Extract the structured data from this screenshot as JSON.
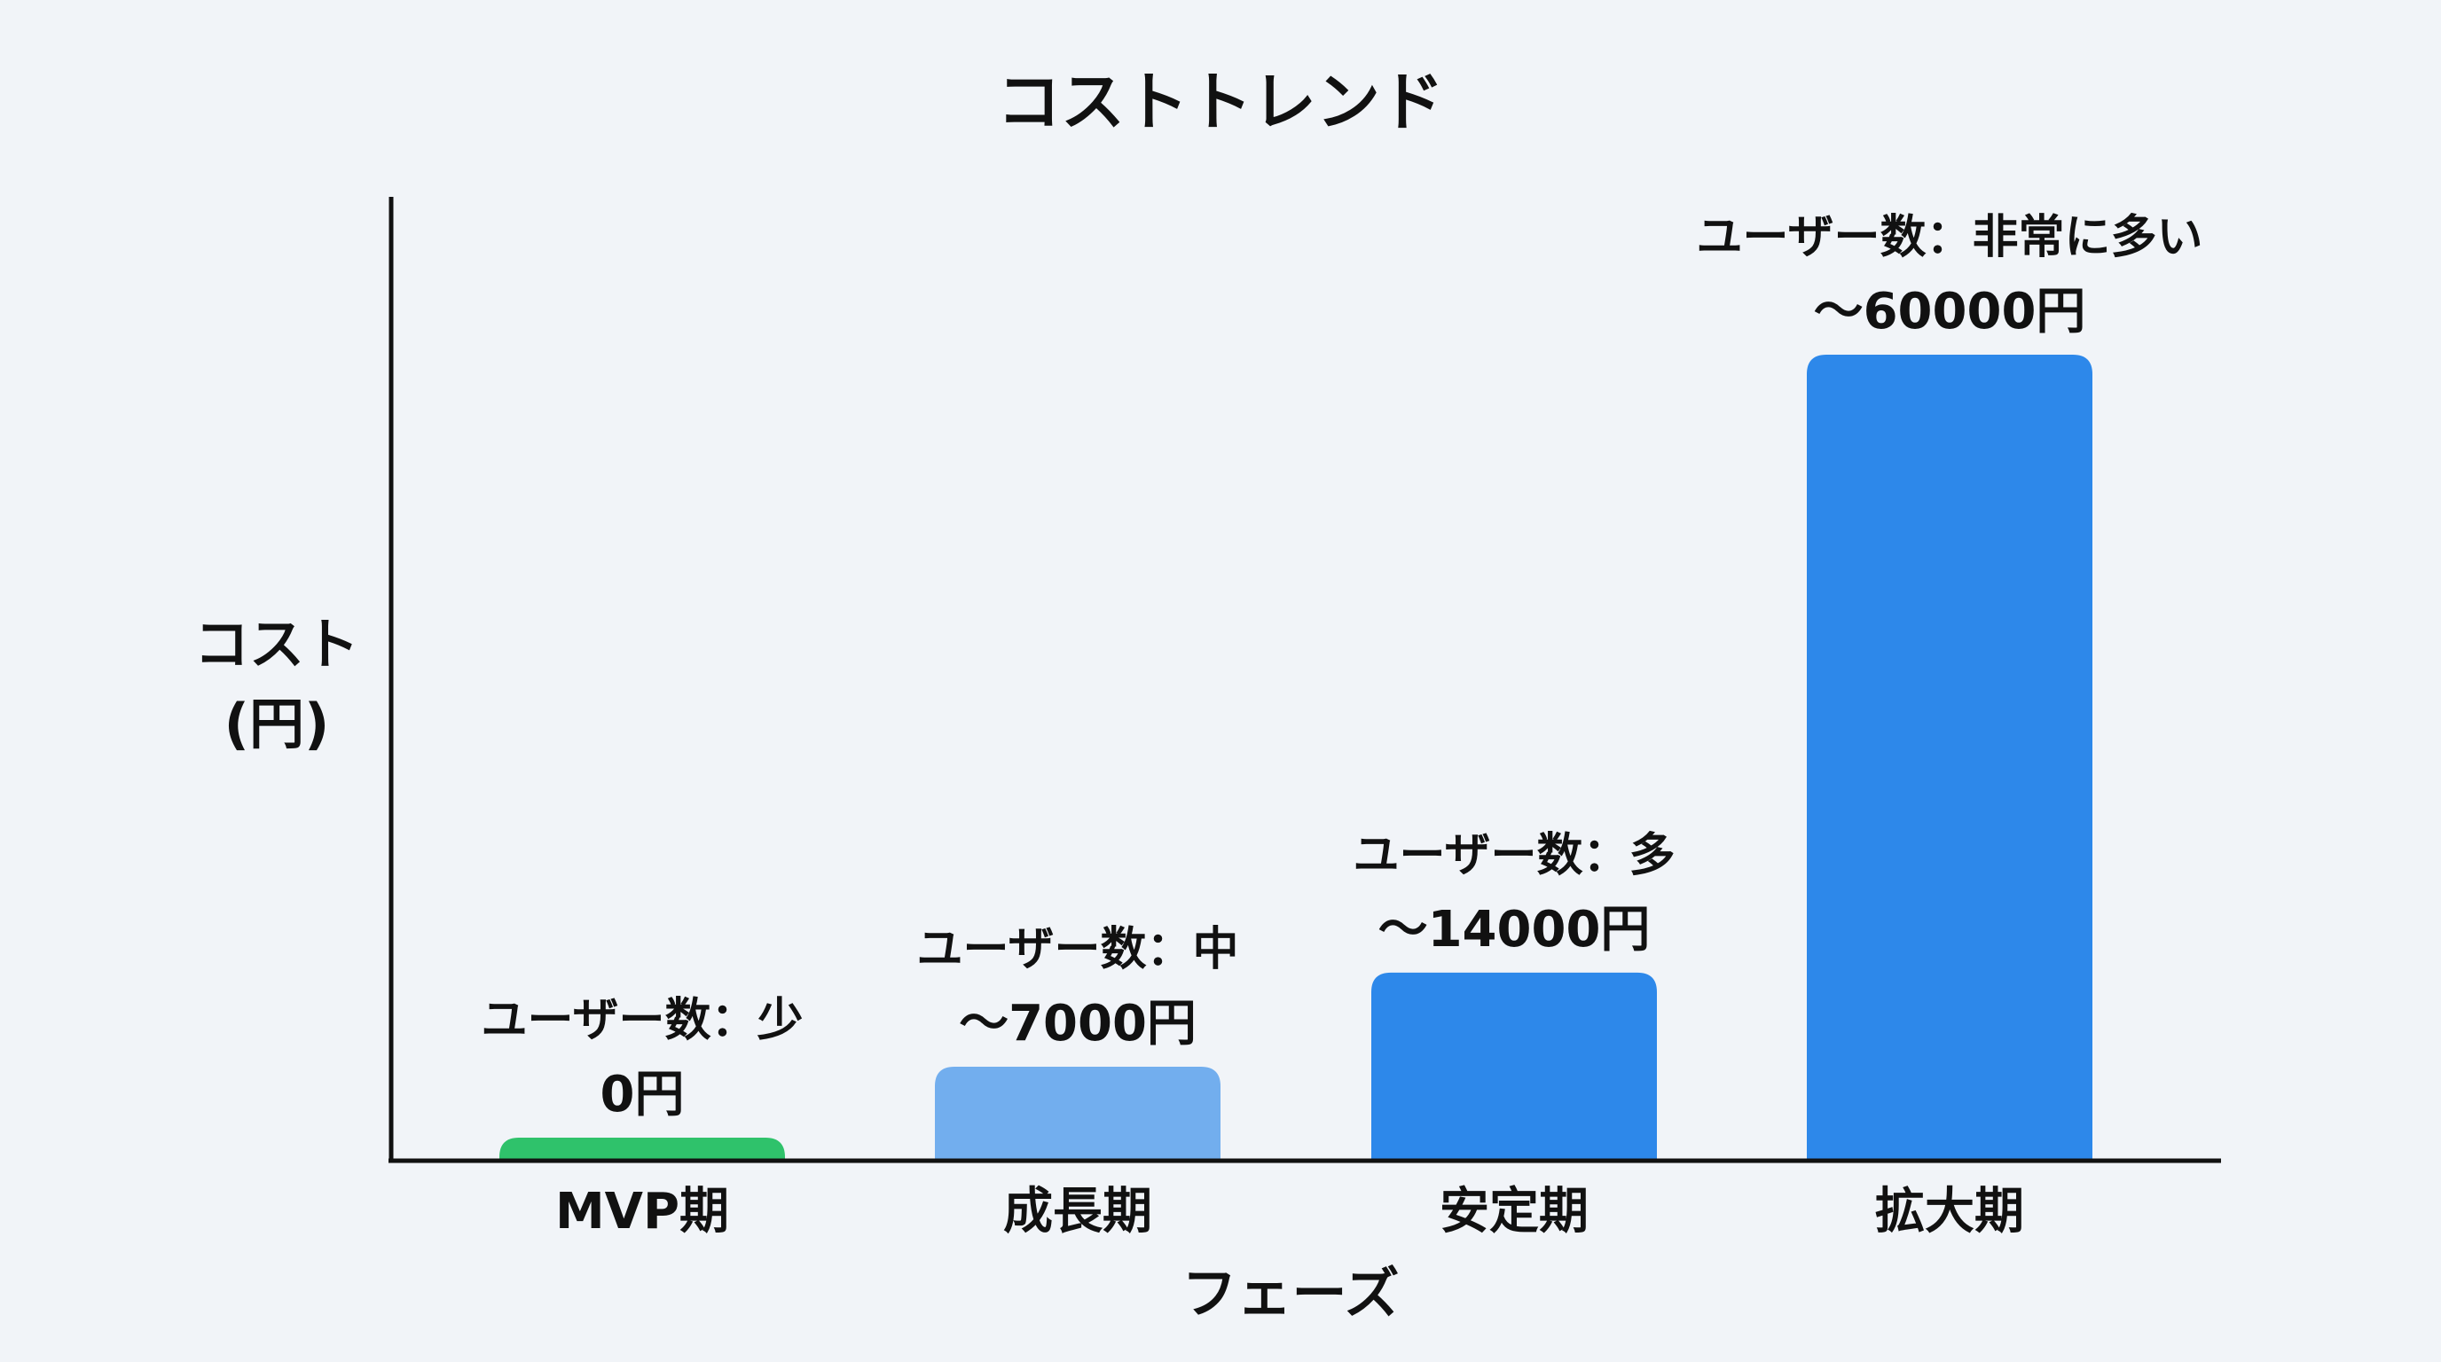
{
  "chart_data": {
    "type": "bar",
    "title": "コストトレンド",
    "xlabel": "フェーズ",
    "ylabel": [
      "コスト",
      "(円)"
    ],
    "categories": [
      "MVP期",
      "成長期",
      "安定期",
      "拡大期"
    ],
    "values": [
      0,
      7000,
      14000,
      60000
    ],
    "value_labels": [
      "0円",
      "〜7000円",
      "〜14000円",
      "〜60000円"
    ],
    "annotations": [
      "ユーザー数：少",
      "ユーザー数：中",
      "ユーザー数：多",
      "ユーザー数：非常に多い"
    ],
    "bar_colors": [
      "#2fc26b",
      "#72aeee",
      "#2d88ea",
      "#2d88ea"
    ],
    "ylim": [
      0,
      60000
    ],
    "grid": false,
    "legend": null
  }
}
